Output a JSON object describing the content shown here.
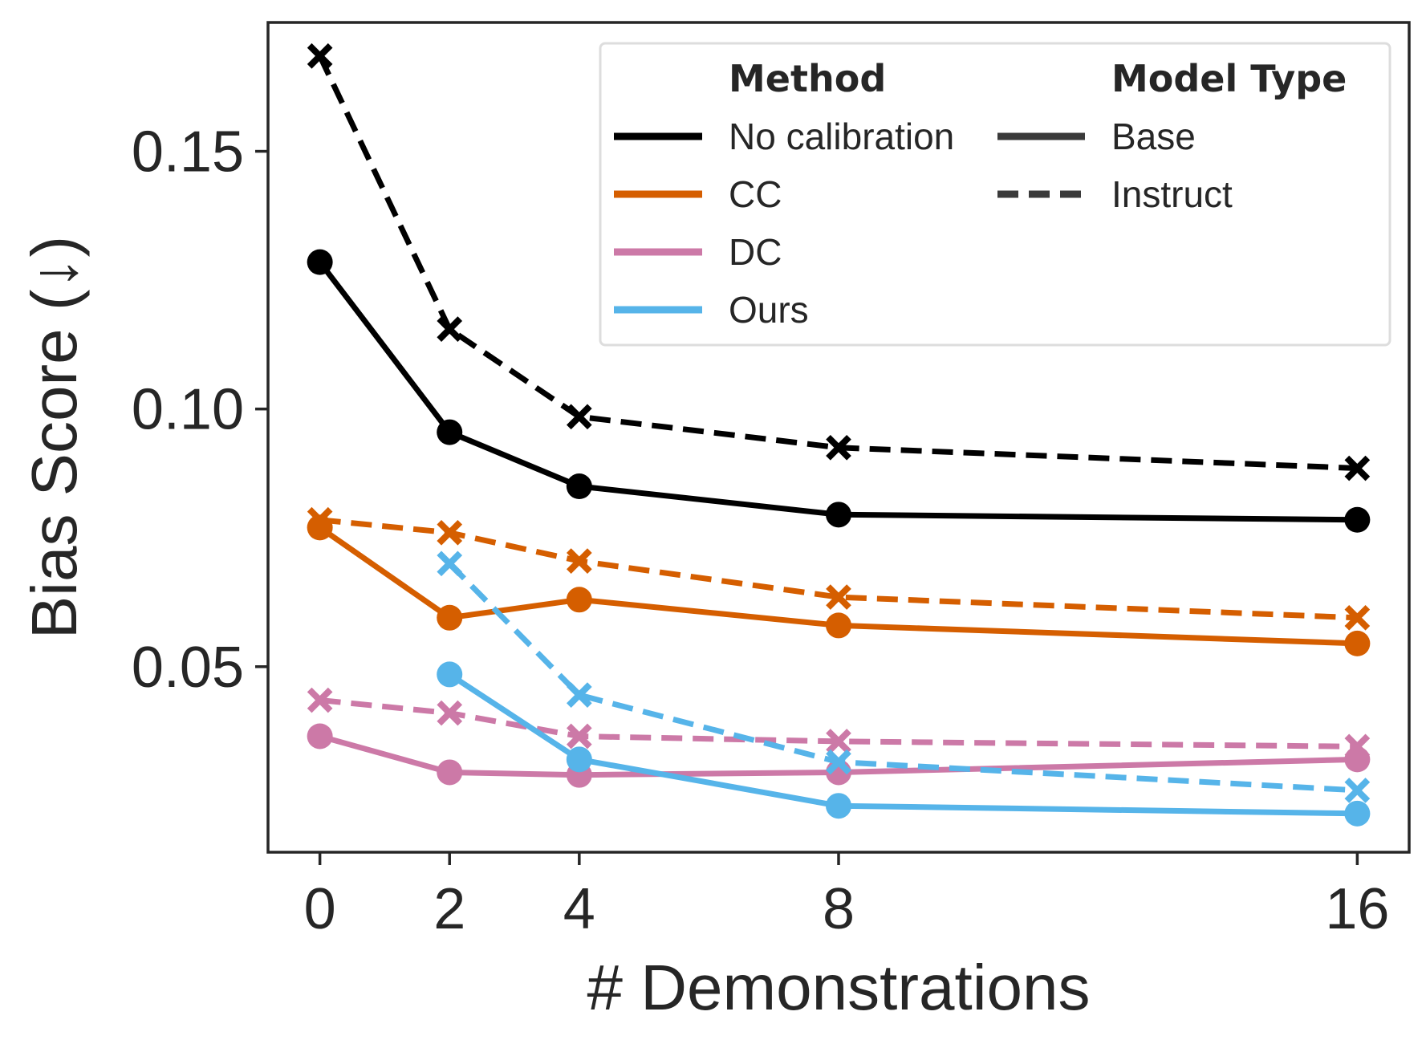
{
  "chart_data": {
    "type": "line",
    "title": "",
    "xlabel": "# Demonstrations",
    "ylabel": "Bias Score (↓)",
    "x": [
      0,
      2,
      4,
      8,
      16
    ],
    "x_tick_labels": [
      "0",
      "2",
      "4",
      "8",
      "16"
    ],
    "xlim": [
      -0.8,
      16.8
    ],
    "ylim": [
      0.014,
      0.175
    ],
    "y_ticks": [
      0.05,
      0.1,
      0.15
    ],
    "y_tick_labels": [
      "0.05",
      "0.10",
      "0.15"
    ],
    "grid": false,
    "legend_position": "top-right",
    "legend": {
      "method_title": "Method",
      "type_title": "Model Type",
      "methods": [
        {
          "name": "No calibration",
          "color": "#000000"
        },
        {
          "name": "CC",
          "color": "#d55e00"
        },
        {
          "name": "DC",
          "color": "#cc79a7"
        },
        {
          "name": "Ours",
          "color": "#56b4e9"
        }
      ],
      "types": [
        {
          "name": "Base",
          "style": "solid",
          "marker": "circle"
        },
        {
          "name": "Instruct",
          "style": "dashed",
          "marker": "x"
        }
      ]
    },
    "series": [
      {
        "method": "No calibration",
        "type": "Base",
        "color": "#000000",
        "values": [
          0.1285,
          0.0955,
          0.085,
          0.0795,
          0.0785
        ]
      },
      {
        "method": "No calibration",
        "type": "Instruct",
        "color": "#000000",
        "values": [
          0.1685,
          0.1155,
          0.0985,
          0.0925,
          0.0885
        ]
      },
      {
        "method": "CC",
        "type": "Base",
        "color": "#d55e00",
        "values": [
          0.077,
          0.0595,
          0.063,
          0.058,
          0.0545
        ]
      },
      {
        "method": "CC",
        "type": "Instruct",
        "color": "#d55e00",
        "values": [
          0.0785,
          0.076,
          0.0705,
          0.0635,
          0.0595
        ]
      },
      {
        "method": "DC",
        "type": "Base",
        "color": "#cc79a7",
        "values": [
          0.0365,
          0.0295,
          0.029,
          0.0295,
          0.032
        ]
      },
      {
        "method": "DC",
        "type": "Instruct",
        "color": "#cc79a7",
        "values": [
          0.0435,
          0.041,
          0.0365,
          0.0355,
          0.0345
        ]
      },
      {
        "method": "Ours",
        "type": "Base",
        "color": "#56b4e9",
        "values": [
          null,
          0.0485,
          0.032,
          0.023,
          0.0215
        ]
      },
      {
        "method": "Ours",
        "type": "Instruct",
        "color": "#56b4e9",
        "values": [
          null,
          0.07,
          0.0445,
          0.0315,
          0.026
        ]
      }
    ]
  }
}
